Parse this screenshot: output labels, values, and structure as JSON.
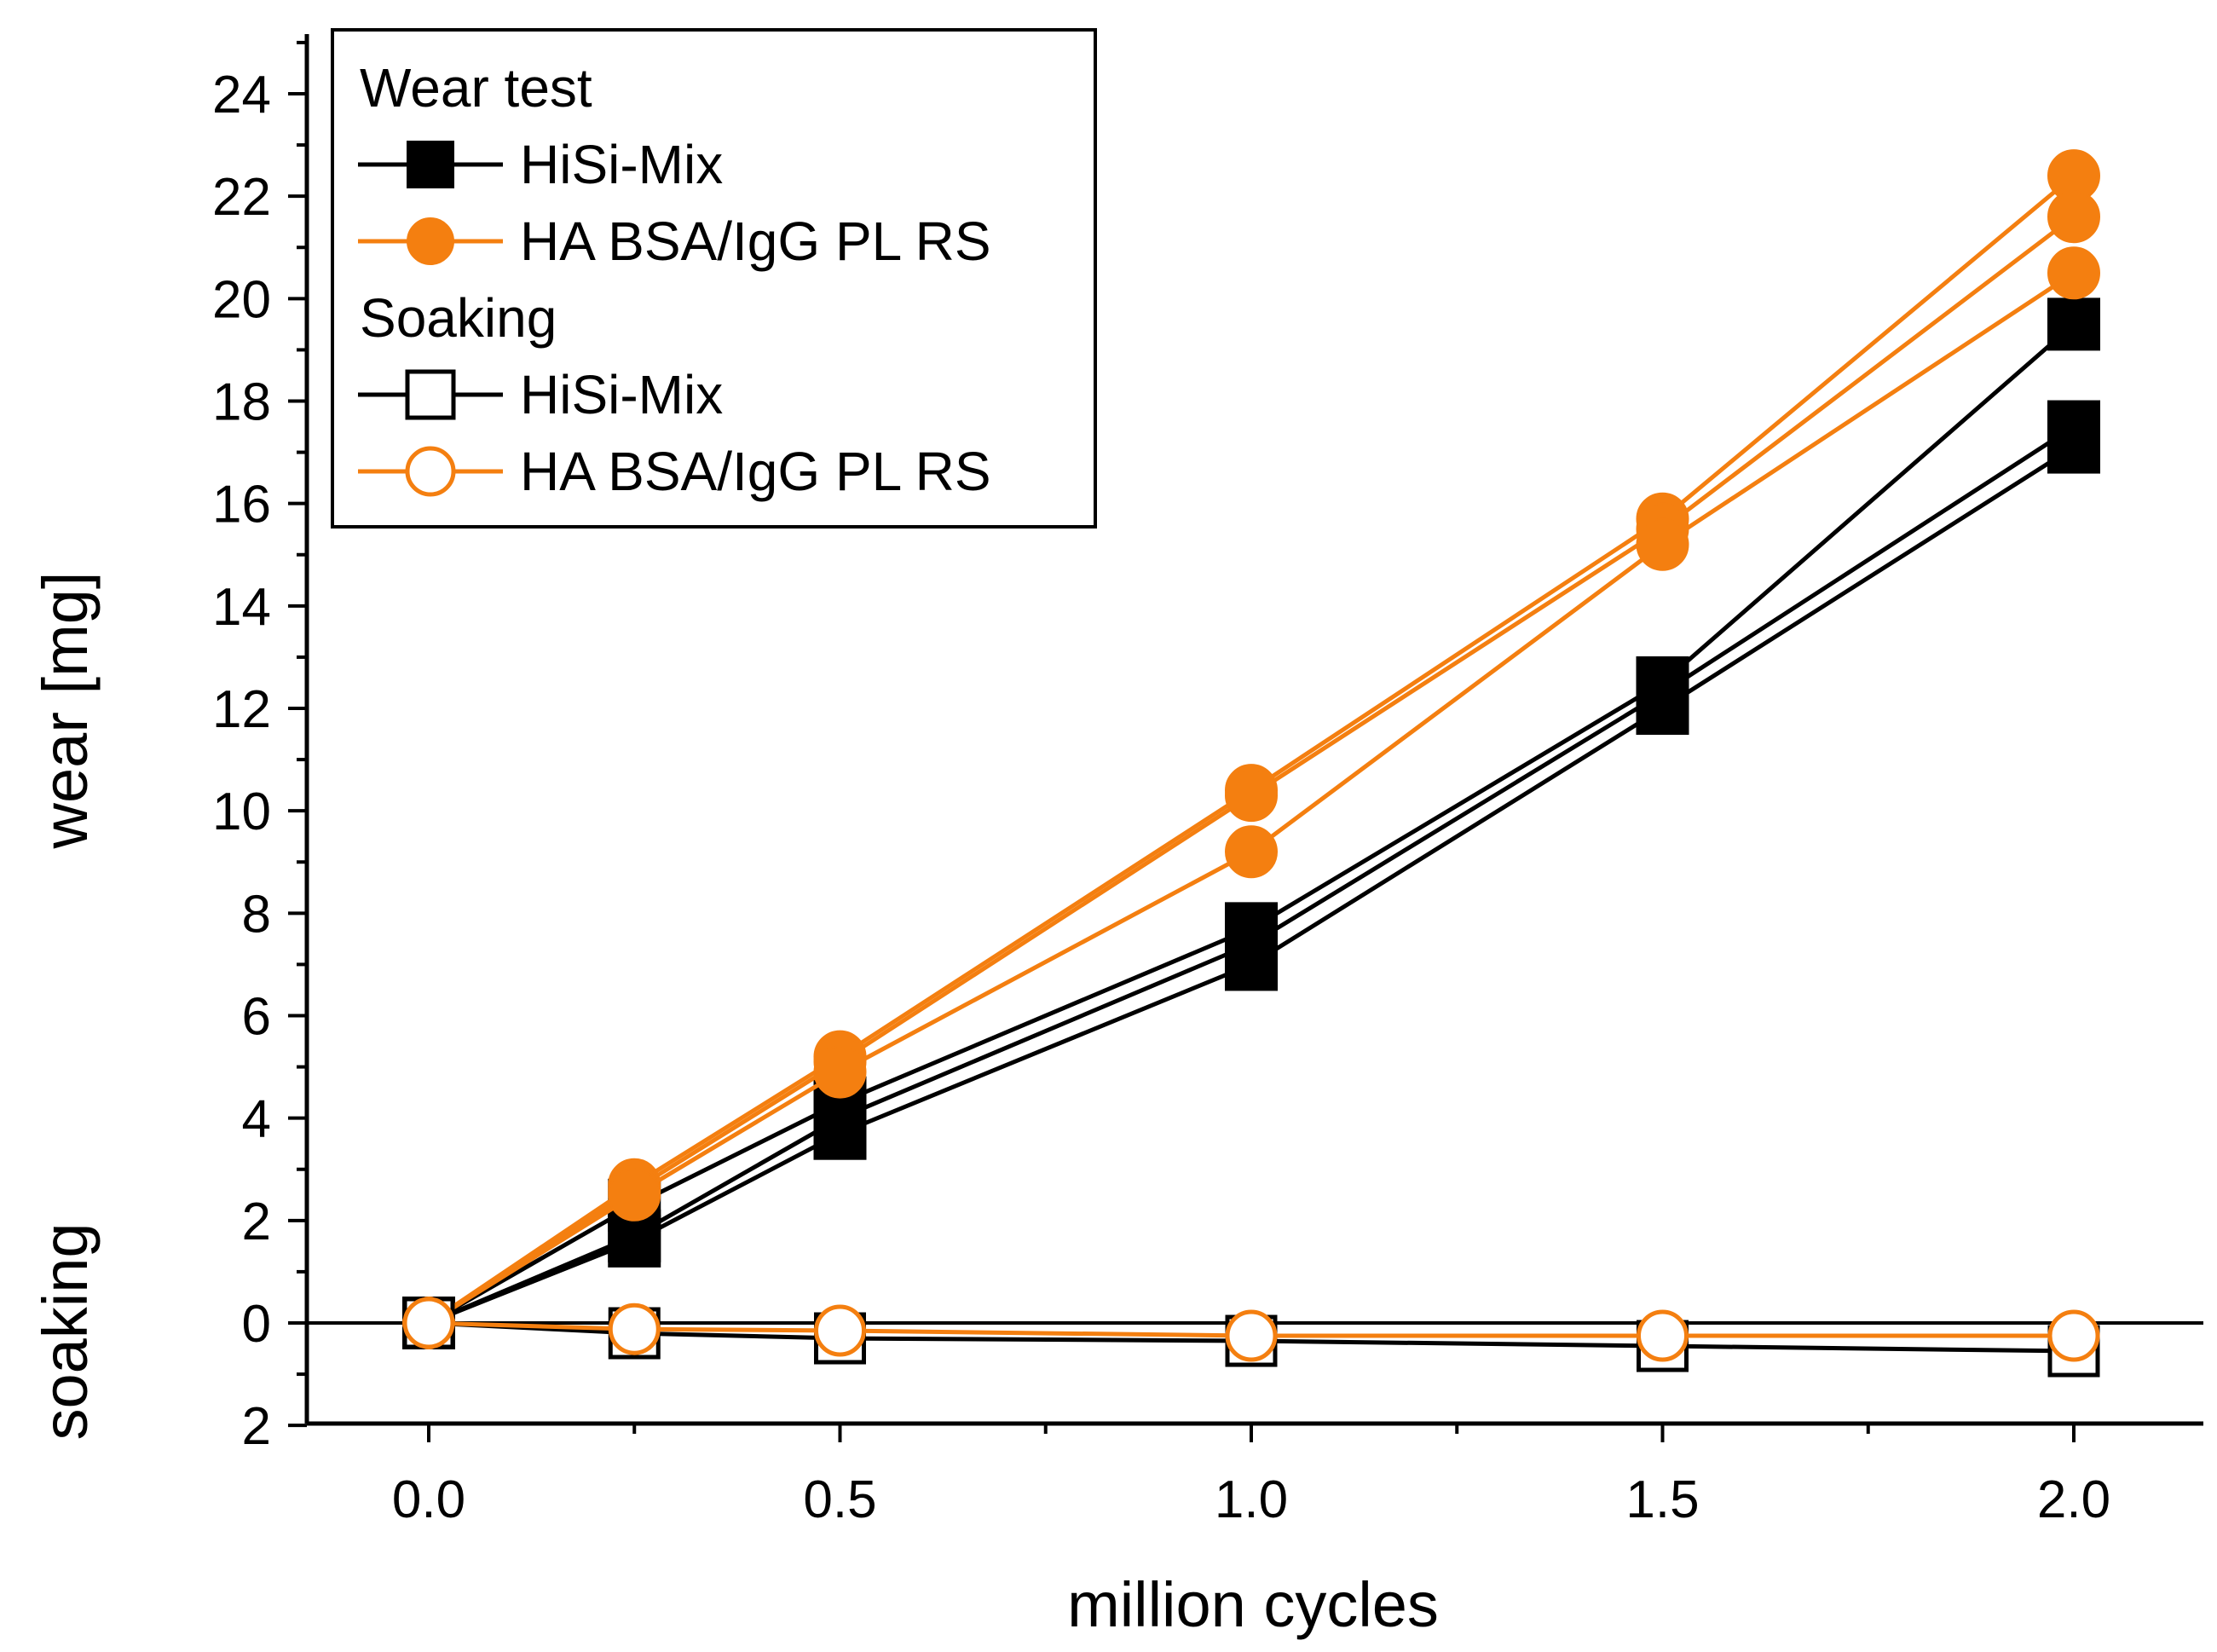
{
  "chart_data": {
    "type": "line",
    "xlabel": "million cycles",
    "ylabel": "wear [mg]",
    "ylabel_secondary": "soaking",
    "xlim": [
      -0.15,
      2.15
    ],
    "ylim": [
      -2,
      25
    ],
    "x_ticks": [
      {
        "value": 0.0,
        "label": "0.0"
      },
      {
        "value": 0.5,
        "label": "0.5"
      },
      {
        "value": 1.0,
        "label": "1.0"
      },
      {
        "value": 1.5,
        "label": "1.5"
      },
      {
        "value": 2.0,
        "label": "2.0"
      }
    ],
    "y_ticks": [
      {
        "value": -2,
        "label": "2"
      },
      {
        "value": 0,
        "label": "0"
      },
      {
        "value": 2,
        "label": "2"
      },
      {
        "value": 4,
        "label": "4"
      },
      {
        "value": 6,
        "label": "6"
      },
      {
        "value": 8,
        "label": "8"
      },
      {
        "value": 10,
        "label": "10"
      },
      {
        "value": 12,
        "label": "12"
      },
      {
        "value": 14,
        "label": "14"
      },
      {
        "value": 16,
        "label": "16"
      },
      {
        "value": 18,
        "label": "18"
      },
      {
        "value": 20,
        "label": "20"
      },
      {
        "value": 22,
        "label": "22"
      },
      {
        "value": 24,
        "label": "24"
      }
    ],
    "x": [
      0,
      0.25,
      0.5,
      1.0,
      1.5,
      2.0
    ],
    "zero_line": 0,
    "legend": {
      "placement": "top-left",
      "items": [
        {
          "kind": "header",
          "label": "Wear test"
        },
        {
          "kind": "entry",
          "label": "HiSi-Mix",
          "color": "#000000",
          "marker": "square",
          "filled": true
        },
        {
          "kind": "entry",
          "label": "HA BSA/IgG PL RS",
          "color": "#f47f10",
          "marker": "circle",
          "filled": true
        },
        {
          "kind": "header",
          "label": "Soaking"
        },
        {
          "kind": "entry",
          "label": "HiSi-Mix",
          "color": "#000000",
          "marker": "square",
          "filled": false
        },
        {
          "kind": "entry",
          "label": "HA BSA/IgG PL RS",
          "color": "#f47f10",
          "marker": "circle",
          "filled": false
        }
      ]
    },
    "series": [
      {
        "name": "HiSi-Mix wear 1",
        "group": "Wear test",
        "color": "#000000",
        "marker": "square",
        "filled": true,
        "values": [
          0,
          2.3,
          4.3,
          7.7,
          12.5,
          19.5
        ]
      },
      {
        "name": "HiSi-Mix wear 2",
        "group": "Wear test",
        "color": "#000000",
        "marker": "square",
        "filled": true,
        "values": [
          0,
          1.7,
          4.0,
          7.4,
          12.3,
          17.5
        ]
      },
      {
        "name": "HiSi-Mix wear 3",
        "group": "Wear test",
        "color": "#000000",
        "marker": "square",
        "filled": true,
        "values": [
          0,
          1.6,
          3.7,
          7.0,
          12.0,
          17.1
        ]
      },
      {
        "name": "HA BSA/IgG PL RS wear 1",
        "group": "Wear test",
        "color": "#f47f10",
        "marker": "circle",
        "filled": true,
        "values": [
          0,
          2.7,
          5.2,
          10.4,
          15.7,
          22.4
        ]
      },
      {
        "name": "HA BSA/IgG PL RS wear 2",
        "group": "Wear test",
        "color": "#f47f10",
        "marker": "circle",
        "filled": true,
        "values": [
          0,
          2.6,
          5.1,
          10.3,
          15.5,
          21.6
        ]
      },
      {
        "name": "HA BSA/IgG PL RS wear 3",
        "group": "Wear test",
        "color": "#f47f10",
        "marker": "circle",
        "filled": true,
        "values": [
          0,
          2.5,
          4.9,
          9.2,
          15.2,
          20.5
        ]
      },
      {
        "name": "HiSi-Mix soaking",
        "group": "Soaking",
        "color": "#000000",
        "marker": "square",
        "filled": false,
        "values": [
          0,
          -0.2,
          -0.3,
          -0.35,
          -0.45,
          -0.55
        ]
      },
      {
        "name": "HA BSA/IgG PL RS soaking",
        "group": "Soaking",
        "color": "#f47f10",
        "marker": "circle",
        "filled": false,
        "values": [
          0,
          -0.12,
          -0.15,
          -0.25,
          -0.25,
          -0.25
        ]
      }
    ]
  }
}
